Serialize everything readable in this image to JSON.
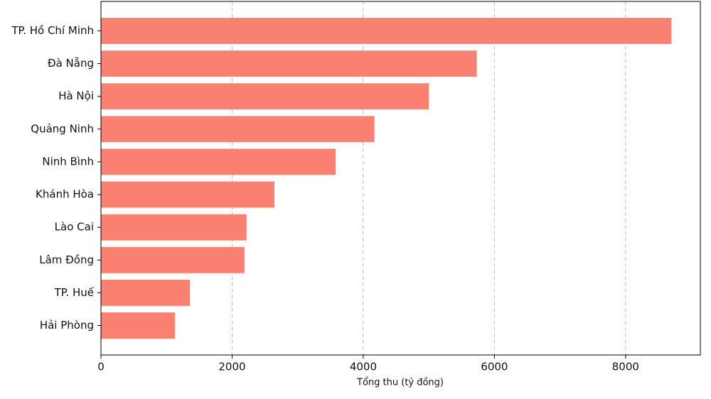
{
  "chart_data": {
    "type": "barh",
    "xlabel": "Tổng thu (tỷ đồng)",
    "categories": [
      "TP. Hồ Chí Minh",
      "Đà Nẵng",
      "Hà Nội",
      "Quảng Ninh",
      "Ninh Bình",
      "Khánh Hòa",
      "Lào Cai",
      "Lâm Đồng",
      "TP. Huế",
      "Hải Phòng"
    ],
    "values": [
      8700,
      5730,
      5000,
      4170,
      3580,
      2645,
      2220,
      2190,
      1355,
      1130
    ],
    "color": "#fa8072",
    "xlim": [
      0,
      9140
    ],
    "xticks": [
      0,
      2000,
      4000,
      6000,
      8000
    ],
    "grid": true
  }
}
